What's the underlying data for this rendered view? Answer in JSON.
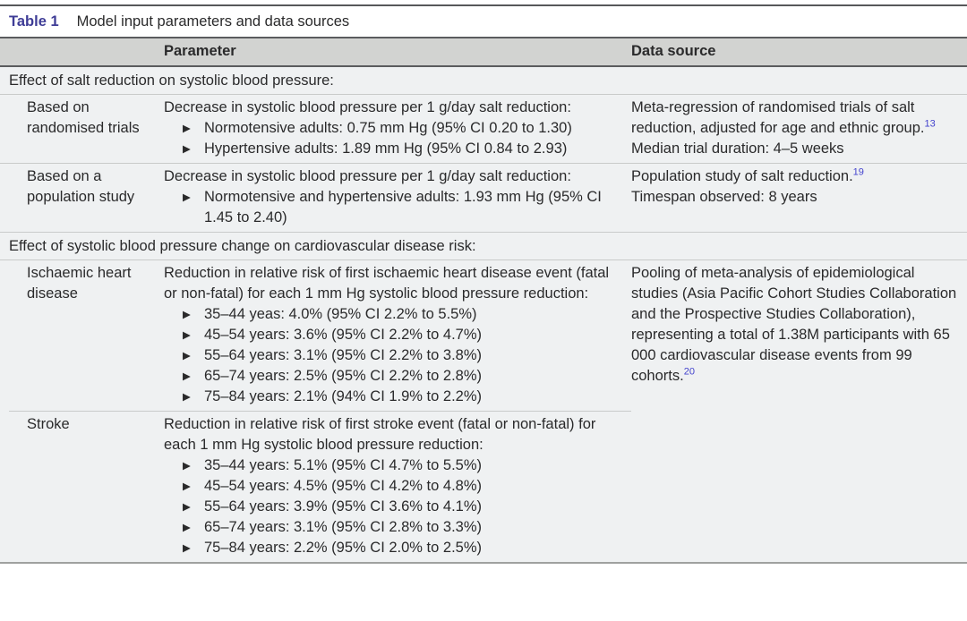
{
  "icons": {
    "bullet": "▶"
  },
  "colors": {
    "title_accent": "#3e3c96",
    "citation_link": "#4343cd",
    "header_row_bg": "#d2d3d1",
    "body_bg": "#eff1f2",
    "rule_dark": "#57585a",
    "rule_light": "#c9cbca",
    "text": "#2a2a2b"
  },
  "table": {
    "label": "Table 1",
    "title": "Model input parameters and data sources",
    "columns": {
      "parameter": "Parameter",
      "data_source": "Data source"
    },
    "sections": [
      {
        "heading": "Effect of salt reduction on systolic blood pressure:",
        "rows": [
          {
            "label": "Based on randomised trials",
            "parameter_intro": "Decrease in systolic blood pressure per 1 g/day salt reduction:",
            "bullets": [
              "Normotensive adults: 0.75 mm Hg (95% CI 0.20 to 1.30)",
              "Hypertensive adults: 1.89 mm Hg (95% CI 0.84 to 2.93)"
            ],
            "source_text": "Meta-regression of randomised trials of salt reduction, adjusted for age and ethnic group.",
            "source_ref": "13",
            "source_note": "Median trial duration: 4–5 weeks"
          },
          {
            "label": "Based on a population study",
            "parameter_intro": "Decrease in systolic blood pressure per 1 g/day salt reduction:",
            "bullets": [
              "Normotensive and hypertensive adults: 1.93 mm Hg (95% CI 1.45 to 2.40)"
            ],
            "source_text": "Population study of salt reduction.",
            "source_ref": "19",
            "source_note": "Timespan observed: 8 years"
          }
        ]
      },
      {
        "heading": "Effect of systolic blood pressure change on cardiovascular disease risk:",
        "rows": [
          {
            "label": "Ischaemic heart disease",
            "parameter_intro": "Reduction in relative risk of first ischaemic heart disease event (fatal or non-fatal) for each 1 mm Hg systolic blood pressure reduction:",
            "bullets": [
              "35–44 yeas: 4.0% (95% CI 2.2% to 5.5%)",
              "45–54 years: 3.6% (95% CI 2.2% to 4.7%)",
              "55–64 years: 3.1% (95% CI 2.2% to 3.8%)",
              "65–74 years: 2.5% (95% CI 2.2% to 2.8%)",
              "75–84 years: 2.1% (94% CI 1.9% to 2.2%)"
            ],
            "source_text": "Pooling of meta-analysis of epidemiological studies (Asia Pacific Cohort Studies Collaboration and the Prospective Studies Collaboration), representing a total of 1.38M participants with 65 000 cardiovascular disease events from 99 cohorts.",
            "source_ref": "20",
            "source_note": ""
          },
          {
            "label": "Stroke",
            "parameter_intro": "Reduction in relative risk of first stroke event (fatal or non-fatal) for each 1 mm Hg systolic blood pressure reduction:",
            "bullets": [
              "35–44 years: 5.1% (95% CI 4.7% to 5.5%)",
              "45–54 years: 4.5% (95% CI 4.2% to 4.8%)",
              "55–64 years: 3.9% (95% CI 3.6% to 4.1%)",
              "65–74 years: 3.1% (95% CI 2.8% to 3.3%)",
              "75–84 years: 2.2% (95% CI 2.0% to 2.5%)"
            ]
          }
        ]
      }
    ]
  }
}
